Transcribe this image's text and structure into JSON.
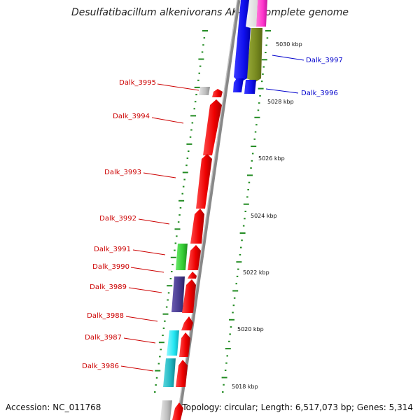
{
  "title": "Desulfatibacillum alkenivorans AK-01, complete genome",
  "footer": {
    "accession": "Accession: NC_011768",
    "topology": "Topology: circular; Length: 6,517,073 bp; Genes: 5,314"
  },
  "colors": {
    "left_label": "#cc0000",
    "right_label": "#0000cc",
    "tick": "#228b22",
    "backbone": "#888888"
  },
  "left_genes": [
    {
      "label": "Dalk_3995"
    },
    {
      "label": "Dalk_3994"
    },
    {
      "label": "Dalk_3993"
    },
    {
      "label": "Dalk_3992"
    },
    {
      "label": "Dalk_3991"
    },
    {
      "label": "Dalk_3990"
    },
    {
      "label": "Dalk_3989"
    },
    {
      "label": "Dalk_3988"
    },
    {
      "label": "Dalk_3987"
    },
    {
      "label": "Dalk_3986"
    }
  ],
  "right_genes": [
    {
      "label": "Dalk_3997"
    },
    {
      "label": "Dalk_3996"
    }
  ],
  "kbp_labels": [
    "5030 kbp",
    "5028 kbp",
    "5026 kbp",
    "5024 kbp",
    "5022 kbp",
    "5020 kbp",
    "5018 kbp"
  ]
}
